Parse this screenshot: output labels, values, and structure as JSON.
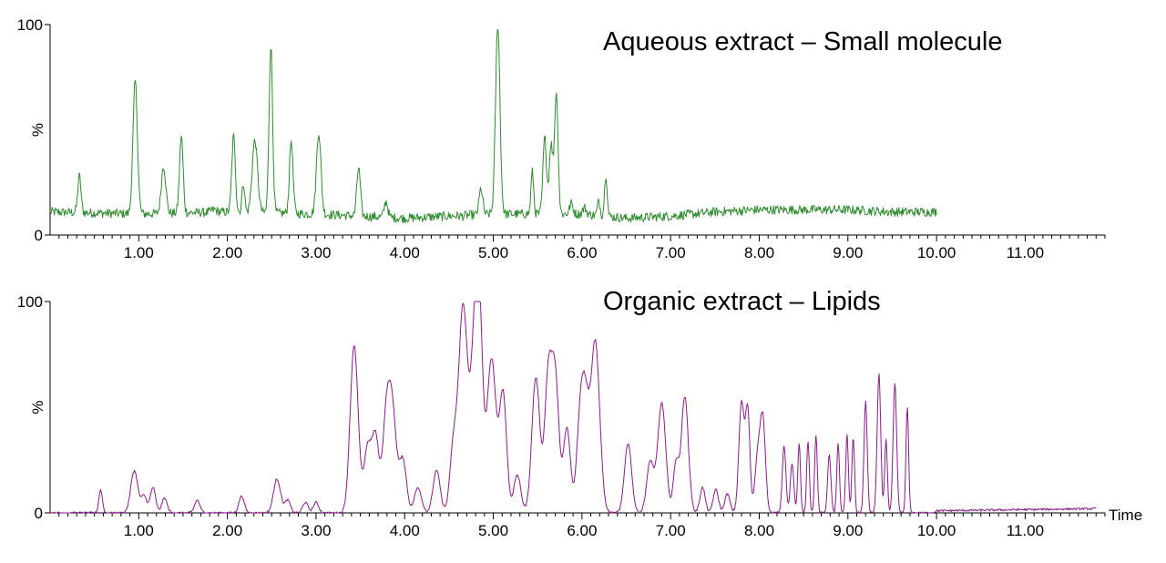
{
  "chart_data": [
    {
      "type": "line",
      "title": "Aqueous extract – Small molecule",
      "xlabel": "",
      "ylabel": "%",
      "xlim": [
        0,
        11.9
      ],
      "ylim": [
        0,
        100
      ],
      "y_ticks": [
        "0",
        "100"
      ],
      "x_ticks": [
        "1.00",
        "2.00",
        "3.00",
        "4.00",
        "5.00",
        "6.00",
        "7.00",
        "8.00",
        "9.00",
        "10.00",
        "11.00"
      ],
      "grid": false,
      "series": [
        {
          "color": "#2e8b2e",
          "x_range": [
            0.0,
            10.0
          ],
          "baseline_points": [
            [
              0.0,
              11
            ],
            [
              1.0,
              10
            ],
            [
              2.0,
              11
            ],
            [
              3.0,
              10
            ],
            [
              4.0,
              8
            ],
            [
              5.0,
              10
            ],
            [
              6.0,
              10
            ],
            [
              6.5,
              8
            ],
            [
              7.0,
              9
            ],
            [
              7.5,
              11
            ],
            [
              8.0,
              12
            ],
            [
              8.5,
              12
            ],
            [
              9.0,
              12
            ],
            [
              9.5,
              11
            ],
            [
              10.0,
              11
            ]
          ],
          "peaks": [
            [
              0.33,
              28,
              0.018
            ],
            [
              0.96,
              73,
              0.025
            ],
            [
              1.28,
              33,
              0.025
            ],
            [
              1.48,
              47,
              0.02
            ],
            [
              1.85,
              12,
              0.03
            ],
            [
              2.07,
              47,
              0.02
            ],
            [
              2.18,
              25,
              0.015
            ],
            [
              2.31,
              45,
              0.03
            ],
            [
              2.49,
              90,
              0.02
            ],
            [
              2.72,
              45,
              0.02
            ],
            [
              3.03,
              49,
              0.025
            ],
            [
              3.48,
              32,
              0.02
            ],
            [
              3.79,
              16,
              0.02
            ],
            [
              4.65,
              9,
              0.03
            ],
            [
              4.86,
              22,
              0.02
            ],
            [
              5.05,
              100,
              0.025
            ],
            [
              5.44,
              30,
              0.015
            ],
            [
              5.58,
              46,
              0.02
            ],
            [
              5.65,
              43,
              0.02
            ],
            [
              5.71,
              68,
              0.02
            ],
            [
              5.88,
              15,
              0.02
            ],
            [
              6.03,
              13,
              0.02
            ],
            [
              6.19,
              16,
              0.015
            ],
            [
              6.27,
              29,
              0.015
            ]
          ]
        }
      ]
    },
    {
      "type": "line",
      "title": "Organic extract – Lipids",
      "xlabel": "Time",
      "ylabel": "%",
      "xlim": [
        0,
        11.9
      ],
      "ylim": [
        0,
        100
      ],
      "y_ticks": [
        "0",
        "100"
      ],
      "x_ticks": [
        "1.00",
        "2.00",
        "3.00",
        "4.00",
        "5.00",
        "6.00",
        "7.00",
        "8.00",
        "9.00",
        "10.00",
        "11.00"
      ],
      "grid": false,
      "series": [
        {
          "color": "#8b1a8b",
          "x_range": [
            0.0,
            11.8
          ],
          "baseline_points": [
            [
              0.0,
              0
            ],
            [
              3.35,
              0
            ],
            [
              3.4,
              0
            ],
            [
              9.95,
              0
            ],
            [
              10.0,
              1
            ],
            [
              11.8,
              2
            ]
          ],
          "peaks": [
            [
              0.57,
              11,
              0.02
            ],
            [
              0.95,
              20,
              0.04
            ],
            [
              1.06,
              8,
              0.03
            ],
            [
              1.16,
              12,
              0.03
            ],
            [
              1.29,
              7,
              0.03
            ],
            [
              1.66,
              6,
              0.03
            ],
            [
              2.16,
              8,
              0.03
            ],
            [
              2.56,
              16,
              0.04
            ],
            [
              2.68,
              6,
              0.03
            ],
            [
              2.88,
              5,
              0.03
            ],
            [
              3.0,
              5,
              0.03
            ],
            [
              3.43,
              79,
              0.045
            ],
            [
              3.58,
              30,
              0.04
            ],
            [
              3.67,
              36,
              0.04
            ],
            [
              3.79,
              40,
              0.04
            ],
            [
              3.86,
              48,
              0.045
            ],
            [
              3.98,
              25,
              0.04
            ],
            [
              4.15,
              12,
              0.04
            ],
            [
              4.36,
              20,
              0.04
            ],
            [
              4.55,
              30,
              0.04
            ],
            [
              4.66,
              98,
              0.05
            ],
            [
              4.78,
              60,
              0.04
            ],
            [
              4.84,
              93,
              0.04
            ],
            [
              4.98,
              73,
              0.05
            ],
            [
              5.11,
              56,
              0.04
            ],
            [
              5.27,
              18,
              0.04
            ],
            [
              5.48,
              64,
              0.045
            ],
            [
              5.62,
              64,
              0.04
            ],
            [
              5.7,
              62,
              0.04
            ],
            [
              5.83,
              40,
              0.04
            ],
            [
              5.98,
              42,
              0.04
            ],
            [
              6.04,
              44,
              0.04
            ],
            [
              6.15,
              81,
              0.05
            ],
            [
              6.52,
              33,
              0.04
            ],
            [
              6.77,
              24,
              0.04
            ],
            [
              6.9,
              52,
              0.045
            ],
            [
              7.06,
              23,
              0.03
            ],
            [
              7.16,
              55,
              0.04
            ],
            [
              7.36,
              12,
              0.03
            ],
            [
              7.51,
              11,
              0.03
            ],
            [
              7.64,
              9,
              0.03
            ],
            [
              7.8,
              52,
              0.03
            ],
            [
              7.87,
              48,
              0.025
            ],
            [
              7.98,
              25,
              0.03
            ],
            [
              8.04,
              44,
              0.03
            ],
            [
              8.28,
              32,
              0.02
            ],
            [
              8.37,
              23,
              0.02
            ],
            [
              8.45,
              33,
              0.015
            ],
            [
              8.55,
              34,
              0.015
            ],
            [
              8.64,
              37,
              0.015
            ],
            [
              8.79,
              28,
              0.018
            ],
            [
              8.89,
              33,
              0.015
            ],
            [
              8.99,
              37,
              0.015
            ],
            [
              9.06,
              36,
              0.015
            ],
            [
              9.2,
              53,
              0.018
            ],
            [
              9.35,
              66,
              0.02
            ],
            [
              9.43,
              35,
              0.015
            ],
            [
              9.53,
              61,
              0.02
            ],
            [
              9.67,
              50,
              0.015
            ]
          ]
        }
      ]
    }
  ]
}
